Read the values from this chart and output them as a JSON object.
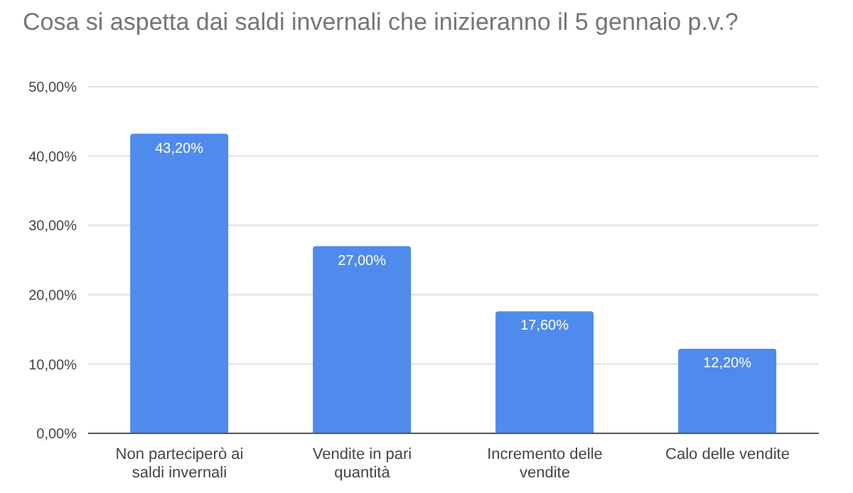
{
  "chart_data": {
    "type": "bar",
    "title": "Cosa si aspetta dai saldi invernali che inizieranno il 5 gennaio p.v.?",
    "categories": [
      "Non parteciperò ai saldi invernali",
      "Vendite in pari quantità",
      "Incremento delle vendite",
      "Calo delle vendite"
    ],
    "values": [
      43.2,
      27.0,
      17.6,
      12.2
    ],
    "value_labels": [
      "43,20%",
      "27,00%",
      "17,60%",
      "12,20%"
    ],
    "color": "#4f8bed",
    "ylim": [
      0,
      50
    ],
    "yticks": [
      {
        "value": 0,
        "label": "0,00%"
      },
      {
        "value": 10,
        "label": "10,00%"
      },
      {
        "value": 20,
        "label": "20,00%"
      },
      {
        "value": 30,
        "label": "30,00%"
      },
      {
        "value": 40,
        "label": "40,00%"
      },
      {
        "value": 50,
        "label": "50,00%"
      }
    ],
    "grid": "y",
    "legend": false
  }
}
